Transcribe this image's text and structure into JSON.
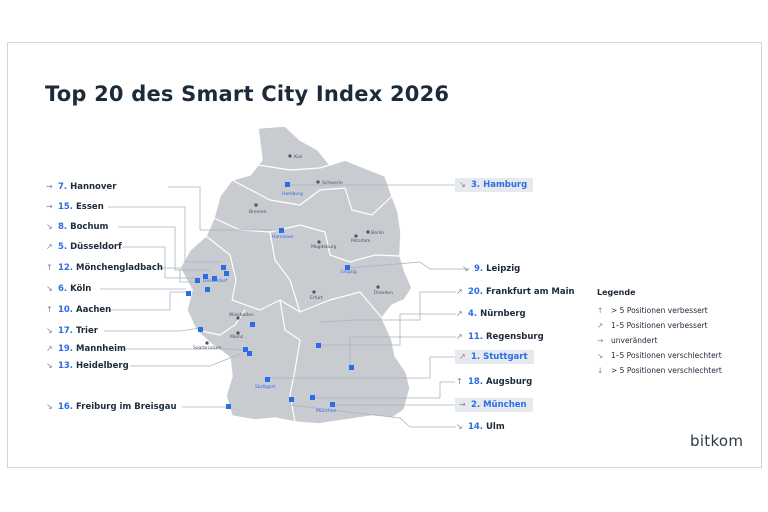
{
  "title": "Top 20 des Smart City Index 2026",
  "left_labels": [
    {
      "arrow": "→",
      "rank": "7.",
      "name": "Hannover"
    },
    {
      "arrow": "→",
      "rank": "15.",
      "name": "Essen"
    },
    {
      "arrow": "↘",
      "rank": "8.",
      "name": "Bochum"
    },
    {
      "arrow": "↗",
      "rank": "5.",
      "name": "Düsseldorf"
    },
    {
      "arrow": "↑",
      "rank": "12.",
      "name": "Mönchengladbach"
    },
    {
      "arrow": "↘",
      "rank": "6.",
      "name": "Köln"
    },
    {
      "arrow": "↑",
      "rank": "10.",
      "name": "Aachen"
    },
    {
      "arrow": "↘",
      "rank": "17.",
      "name": "Trier"
    },
    {
      "arrow": "↗",
      "rank": "19.",
      "name": "Mannheim"
    },
    {
      "arrow": "↘",
      "rank": "13.",
      "name": "Heidelberg"
    },
    {
      "arrow": "↘",
      "rank": "16.",
      "name": "Freiburg im Breisgau"
    }
  ],
  "right_labels": [
    {
      "arrow": "↘",
      "rank": "3.",
      "name": "Hamburg",
      "highlight": true
    },
    {
      "arrow": "↘",
      "rank": "9.",
      "name": "Leipzig"
    },
    {
      "arrow": "↗",
      "rank": "20.",
      "name": "Frankfurt am Main"
    },
    {
      "arrow": "↗",
      "rank": "4.",
      "name": "Nürnberg"
    },
    {
      "arrow": "↗",
      "rank": "11.",
      "name": "Regensburg"
    },
    {
      "arrow": "↗",
      "rank": "1.",
      "name": "Stuttgart",
      "highlight": true
    },
    {
      "arrow": "↑",
      "rank": "18.",
      "name": "Augsburg"
    },
    {
      "arrow": "→",
      "rank": "2.",
      "name": "München",
      "highlight": true
    },
    {
      "arrow": "↘",
      "rank": "14.",
      "name": "Ulm"
    }
  ],
  "map_labels": [
    {
      "name": "Kiel"
    },
    {
      "name": "Schwerin"
    },
    {
      "name": "Hamburg"
    },
    {
      "name": "Bremen"
    },
    {
      "name": "Hannover"
    },
    {
      "name": "Berlin"
    },
    {
      "name": "Potsdam"
    },
    {
      "name": "Magdeburg"
    },
    {
      "name": "Düsseldorf"
    },
    {
      "name": "Leipzig"
    },
    {
      "name": "Dresden"
    },
    {
      "name": "Erfurt"
    },
    {
      "name": "Wiesbaden"
    },
    {
      "name": "Mainz"
    },
    {
      "name": "Saarbrücken"
    },
    {
      "name": "Stuttgart"
    },
    {
      "name": "München"
    }
  ],
  "legend": {
    "heading": "Legende",
    "items": [
      {
        "arrow": "↑",
        "label": "> 5 Positionen verbessert"
      },
      {
        "arrow": "↗",
        "label": "1–5 Positionen verbessert"
      },
      {
        "arrow": "→",
        "label": "unverändert"
      },
      {
        "arrow": "↘",
        "label": "1–5 Positionen verschlechtert"
      },
      {
        "arrow": "↓",
        "label": "> 5 Positionen verschlechtert"
      }
    ]
  },
  "logo": "bitkom",
  "colors": {
    "accent": "#2b6de8",
    "map_fill": "#c8cbd0",
    "border": "#ffffff",
    "text": "#1d2a3a"
  }
}
